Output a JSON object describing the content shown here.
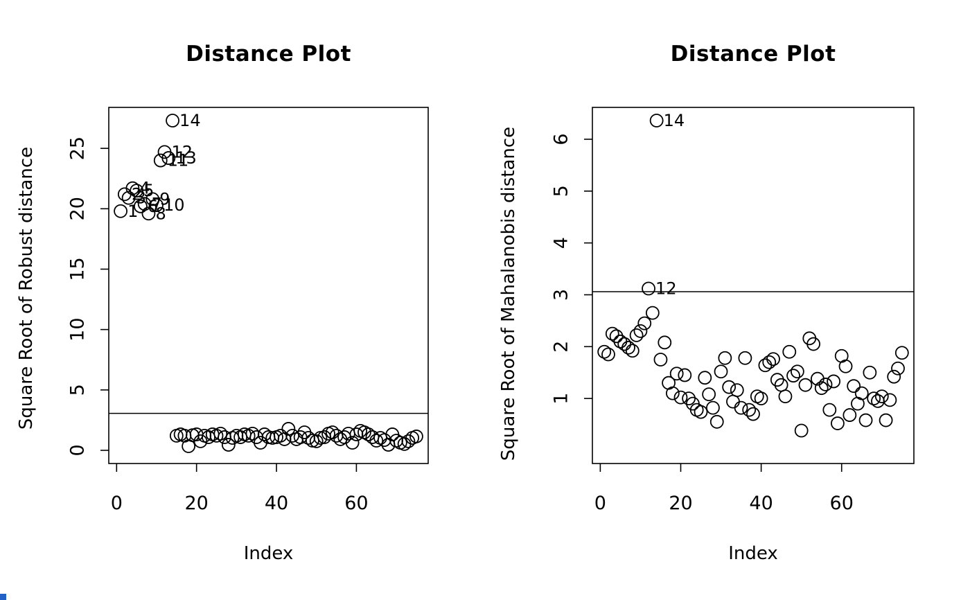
{
  "figure": {
    "background": "#ffffff",
    "foreground": "#000000",
    "artifact_blue": "#2262c6"
  },
  "chart_data": [
    {
      "type": "scatter",
      "title": "Distance Plot",
      "xlabel": "Index",
      "ylabel": "Square Root of Robust distance",
      "marker": "open-circle",
      "grid": false,
      "legend": "none",
      "xlim": [
        1,
        75
      ],
      "ylim": [
        0,
        27.3
      ],
      "xticks": [
        0,
        20,
        40,
        60
      ],
      "yticks": [
        0,
        5,
        10,
        15,
        20,
        25
      ],
      "cutoff_line": 3.06,
      "labeled_indices": [
        1,
        2,
        3,
        4,
        5,
        6,
        7,
        8,
        9,
        10,
        11,
        12,
        13,
        14
      ],
      "x": [
        1,
        2,
        3,
        4,
        5,
        6,
        7,
        8,
        9,
        10,
        11,
        12,
        13,
        14,
        15,
        16,
        17,
        18,
        19,
        20,
        21,
        22,
        23,
        24,
        25,
        26,
        27,
        28,
        29,
        30,
        31,
        32,
        33,
        34,
        35,
        36,
        37,
        38,
        39,
        40,
        41,
        42,
        43,
        44,
        45,
        46,
        47,
        48,
        49,
        50,
        51,
        52,
        53,
        54,
        55,
        56,
        57,
        58,
        59,
        60,
        61,
        62,
        63,
        64,
        65,
        66,
        67,
        68,
        69,
        70,
        71,
        72,
        73,
        74,
        75
      ],
      "y": [
        19.8,
        21.2,
        20.9,
        21.7,
        21.5,
        20.2,
        20.4,
        19.6,
        20.8,
        20.3,
        24.0,
        24.7,
        24.2,
        27.3,
        1.21,
        1.32,
        1.21,
        0.34,
        1.25,
        1.32,
        0.75,
        1.21,
        1.09,
        1.32,
        1.21,
        1.38,
        1.09,
        0.46,
        1.03,
        1.21,
        1.09,
        1.32,
        1.21,
        1.38,
        1.09,
        0.63,
        1.32,
        1.09,
        1.03,
        1.09,
        1.21,
        0.92,
        1.78,
        1.21,
        0.92,
        1.09,
        1.49,
        1.03,
        0.8,
        0.75,
        1.03,
        1.09,
        1.38,
        1.49,
        1.21,
        0.92,
        1.09,
        1.38,
        0.63,
        1.32,
        1.61,
        1.49,
        1.32,
        1.09,
        0.8,
        1.03,
        0.85,
        0.46,
        1.32,
        0.8,
        0.63,
        0.52,
        0.75,
        1.03,
        1.15
      ]
    },
    {
      "type": "scatter",
      "title": "Distance Plot",
      "xlabel": "Index",
      "ylabel": "Square Root of Mahalanobis distance",
      "marker": "open-circle",
      "grid": false,
      "legend": "none",
      "xlim": [
        1,
        75
      ],
      "ylim": [
        0,
        6.36
      ],
      "xticks": [
        0,
        20,
        40,
        60
      ],
      "yticks": [
        1,
        2,
        3,
        4,
        5,
        6
      ],
      "cutoff_line": 3.06,
      "labeled_indices": [
        12,
        14
      ],
      "x": [
        1,
        2,
        3,
        4,
        5,
        6,
        7,
        8,
        9,
        10,
        11,
        12,
        13,
        14,
        15,
        16,
        17,
        18,
        19,
        20,
        21,
        22,
        23,
        24,
        25,
        26,
        27,
        28,
        29,
        30,
        31,
        32,
        33,
        34,
        35,
        36,
        37,
        38,
        39,
        40,
        41,
        42,
        43,
        44,
        45,
        46,
        47,
        48,
        49,
        50,
        51,
        52,
        53,
        54,
        55,
        56,
        57,
        58,
        59,
        60,
        61,
        62,
        63,
        64,
        65,
        66,
        67,
        68,
        69,
        70,
        71,
        72,
        73,
        74,
        75
      ],
      "y": [
        1.9,
        1.85,
        2.25,
        2.2,
        2.1,
        2.05,
        1.98,
        1.92,
        2.22,
        2.3,
        2.45,
        3.12,
        2.65,
        6.36,
        1.75,
        2.08,
        1.3,
        1.1,
        1.48,
        1.02,
        1.45,
        1.0,
        0.9,
        0.78,
        0.74,
        1.4,
        1.08,
        0.82,
        0.55,
        1.52,
        1.78,
        1.22,
        0.94,
        1.16,
        0.82,
        1.78,
        0.78,
        0.7,
        1.04,
        1.0,
        1.64,
        1.7,
        1.76,
        1.36,
        1.26,
        1.04,
        1.9,
        1.44,
        1.52,
        0.38,
        1.26,
        2.16,
        2.05,
        1.38,
        1.2,
        1.27,
        0.78,
        1.33,
        0.52,
        1.82,
        1.62,
        0.68,
        1.24,
        0.9,
        1.1,
        0.58,
        1.5,
        1.0,
        0.95,
        1.04,
        0.58,
        0.97,
        1.42,
        1.58,
        1.88
      ]
    }
  ]
}
